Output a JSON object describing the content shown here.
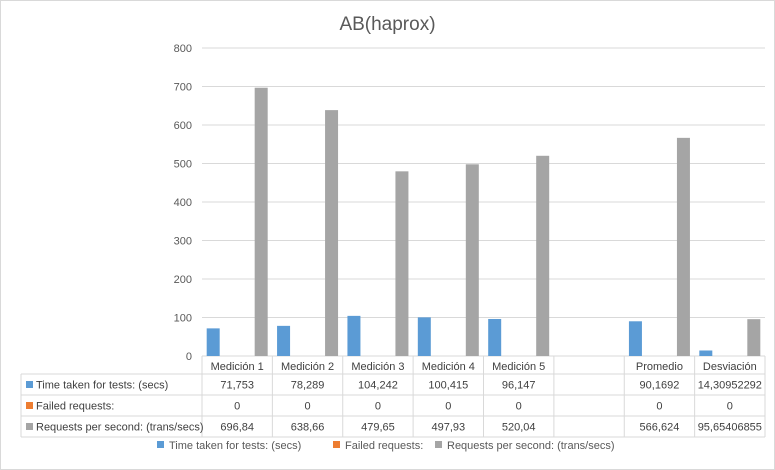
{
  "chart_data": {
    "type": "bar",
    "title": "AB(haprox)",
    "categories": [
      "Medición 1",
      "Medición 2",
      "Medición 3",
      "Medición 4",
      "Medición 5",
      "",
      "Promedio",
      "Desviación"
    ],
    "series": [
      {
        "name": "Time taken for tests: (secs)",
        "color": "#5b9bd5",
        "values": [
          71.753,
          78.289,
          104.242,
          100.415,
          96.147,
          null,
          90.1692,
          14.30952292
        ],
        "labels": [
          "71,753",
          "78,289",
          "104,242",
          "100,415",
          "96,147",
          "",
          "90,1692",
          "14,30952292"
        ]
      },
      {
        "name": "Failed requests:",
        "color": "#ed7d31",
        "values": [
          0,
          0,
          0,
          0,
          0,
          null,
          0,
          0
        ],
        "labels": [
          "0",
          "0",
          "0",
          "0",
          "0",
          "",
          "0",
          "0"
        ]
      },
      {
        "name": "Requests per second: (trans/secs)",
        "color": "#a5a5a5",
        "values": [
          696.84,
          638.66,
          479.65,
          497.93,
          520.04,
          null,
          566.624,
          95.65406855
        ],
        "labels": [
          "696,84",
          "638,66",
          "479,65",
          "497,93",
          "520,04",
          "",
          "566,624",
          "95,65406855"
        ]
      }
    ],
    "yticks": [
      "0",
      "100",
      "200",
      "300",
      "400",
      "500",
      "600",
      "700",
      "800"
    ],
    "ylim": [
      0,
      800
    ],
    "grid": true,
    "data_table": true,
    "legend_position": "bottom"
  }
}
